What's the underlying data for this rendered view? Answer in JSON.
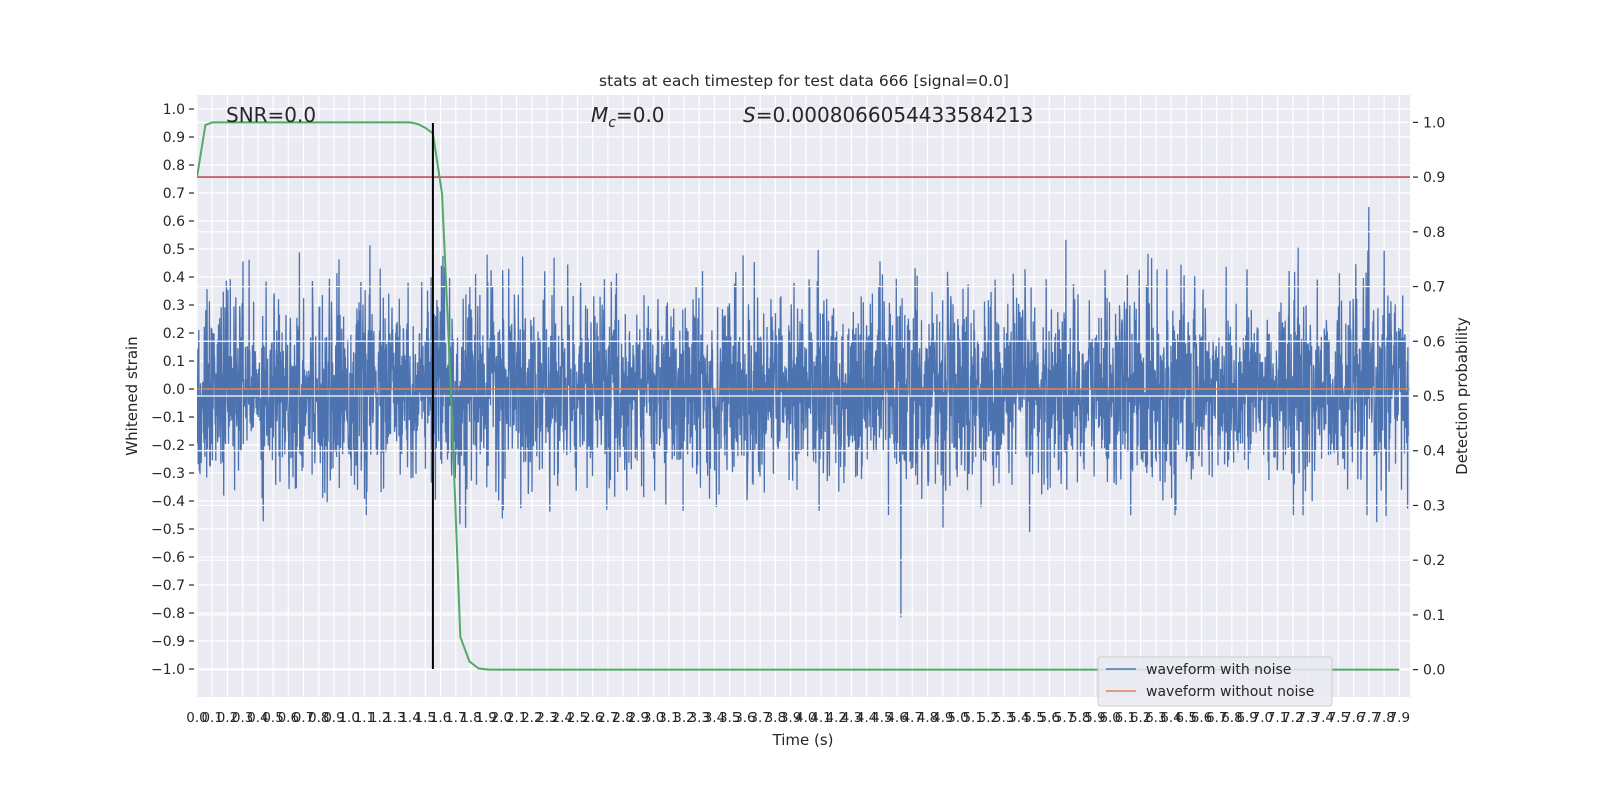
{
  "chart_data": {
    "type": "line",
    "title": "stats at each timestep for test data 666 [signal=0.0]",
    "xlabel": "Time (s)",
    "ylabel": "Whitened strain",
    "y2label": "Detection probability",
    "xlim": [
      0,
      7.97
    ],
    "ylim": [
      -1.1,
      1.05
    ],
    "y2lim": [
      -0.05,
      1.05
    ],
    "grid": true,
    "x_ticks": [
      "0.0",
      "0.1",
      "0.2",
      "0.3",
      "0.4",
      "0.5",
      "0.6",
      "0.7",
      "0.8",
      "0.9",
      "1.0",
      "1.1",
      "1.2",
      "1.3",
      "1.4",
      "1.5",
      "1.6",
      "1.7",
      "1.8",
      "1.9",
      "2.0",
      "2.1",
      "2.2",
      "2.3",
      "2.4",
      "2.5",
      "2.6",
      "2.7",
      "2.8",
      "2.9",
      "3.0",
      "3.1",
      "3.2",
      "3.3",
      "3.4",
      "3.5",
      "3.6",
      "3.7",
      "3.8",
      "3.9",
      "4.0",
      "4.1",
      "4.2",
      "4.3",
      "4.4",
      "4.5",
      "4.6",
      "4.7",
      "4.8",
      "4.9",
      "5.0",
      "5.1",
      "5.2",
      "5.3",
      "5.4",
      "5.5",
      "5.6",
      "5.7",
      "5.8",
      "5.9",
      "6.0",
      "6.1",
      "6.2",
      "6.3",
      "6.4",
      "6.5",
      "6.6",
      "6.7",
      "6.8",
      "6.9",
      "7.0",
      "7.1",
      "7.2",
      "7.3",
      "7.4",
      "7.5",
      "7.6",
      "7.7",
      "7.8",
      "7.9"
    ],
    "y_ticks": [
      "1.0",
      "0.9",
      "0.8",
      "0.7",
      "0.6",
      "0.5",
      "0.4",
      "0.3",
      "0.2",
      "0.1",
      "0.0",
      "−0.1",
      "−0.2",
      "−0.3",
      "−0.4",
      "−0.5",
      "−0.6",
      "−0.7",
      "−0.8",
      "−0.9",
      "−1.0"
    ],
    "y2_ticks": [
      "1.0",
      "0.9",
      "0.8",
      "0.7",
      "0.6",
      "0.5",
      "0.4",
      "0.3",
      "0.2",
      "0.1",
      "0.0"
    ],
    "annotations": {
      "snr": "SNR=0.0",
      "mc_symbol": "M",
      "mc_sub": "c",
      "mc_value": "=0.0",
      "s_symbol": "S",
      "s_value": "=0.0008066054433584213"
    },
    "series": [
      {
        "name": "waveform with noise",
        "color": "#4c72b0",
        "axis": "left",
        "description_samples": 4000,
        "approx_range": [
          -1.0,
          0.95
        ]
      },
      {
        "name": "waveform without noise",
        "color": "#dd8452",
        "axis": "left",
        "x": [
          0,
          7.97
        ],
        "y": [
          0,
          0
        ]
      },
      {
        "name": "detection probability",
        "color": "#55a868",
        "axis": "right",
        "x": [
          0,
          0.055,
          0.1,
          1.4,
          1.45,
          1.5,
          1.55,
          1.61,
          1.67,
          1.73,
          1.79,
          1.85,
          1.92,
          7.9
        ],
        "y": [
          0.9,
          0.995,
          1.0,
          1.0,
          0.997,
          0.99,
          0.98,
          0.87,
          0.5,
          0.06,
          0.015,
          0.002,
          0.0,
          0.0
        ]
      },
      {
        "name": "threshold",
        "color": "#c44e52",
        "axis": "right",
        "y": 0.9
      },
      {
        "name": "marker",
        "color": "#000000",
        "x": 1.55,
        "yrange": [
          -1.0,
          0.95
        ]
      }
    ],
    "legend": {
      "placement": "lower-right",
      "entries": [
        "waveform with noise",
        "waveform without noise"
      ]
    }
  }
}
